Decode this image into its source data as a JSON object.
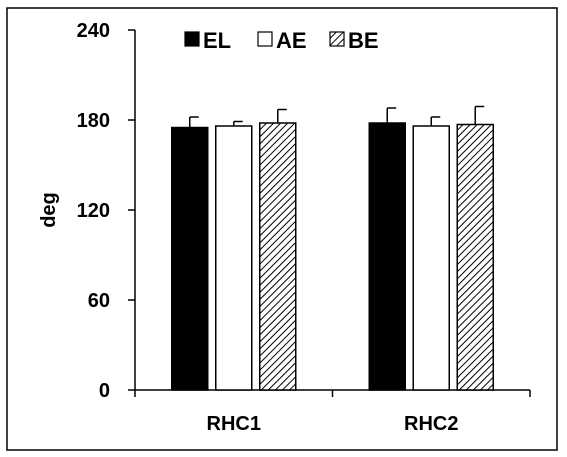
{
  "chart_data": {
    "type": "bar",
    "title": "",
    "xlabel": "",
    "ylabel": "deg",
    "ylim": [
      0,
      240
    ],
    "yticks": [
      0,
      60,
      120,
      180,
      240
    ],
    "categories": [
      "RHC1",
      "RHC2"
    ],
    "series": [
      {
        "name": "EL",
        "values": [
          175,
          178
        ],
        "errors": [
          7,
          10
        ],
        "fill": "solid-black"
      },
      {
        "name": "AE",
        "values": [
          176,
          176
        ],
        "errors": [
          3,
          6
        ],
        "fill": "white"
      },
      {
        "name": "BE",
        "values": [
          178,
          177
        ],
        "errors": [
          9,
          12
        ],
        "fill": "hatched"
      }
    ],
    "legend_position": "top-left",
    "grid": false
  },
  "colors": {
    "frame": "#000000",
    "bar_dark": "#000000",
    "bar_light": "#ffffff",
    "hatch": "#000000"
  }
}
